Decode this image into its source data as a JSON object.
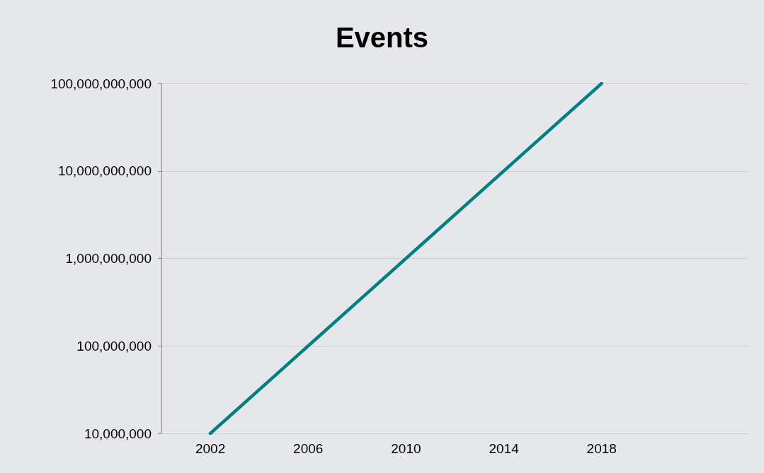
{
  "chart_data": {
    "type": "line",
    "title": "Events",
    "x": [
      2002,
      2006,
      2010,
      2014,
      2018
    ],
    "series": [
      {
        "color": "#008080",
        "values": [
          10000000,
          100000000,
          1000000000,
          10000000000,
          100000000000
        ]
      }
    ],
    "xlim": [
      2000,
      2024
    ],
    "xticks": [
      2002,
      2006,
      2010,
      2014,
      2018
    ],
    "ylim": [
      10000000,
      100000000000
    ],
    "yticks": [
      {
        "value": 10000000,
        "label": "10,000,000"
      },
      {
        "value": 100000000,
        "label": "100,000,000"
      },
      {
        "value": 1000000000,
        "label": "1,000,000,000"
      },
      {
        "value": 10000000000,
        "label": "10,000,000,000"
      },
      {
        "value": 100000000000,
        "label": "100,000,000,000"
      }
    ],
    "log": "y",
    "grid": "y",
    "marker": "none",
    "line_style": "solid"
  }
}
